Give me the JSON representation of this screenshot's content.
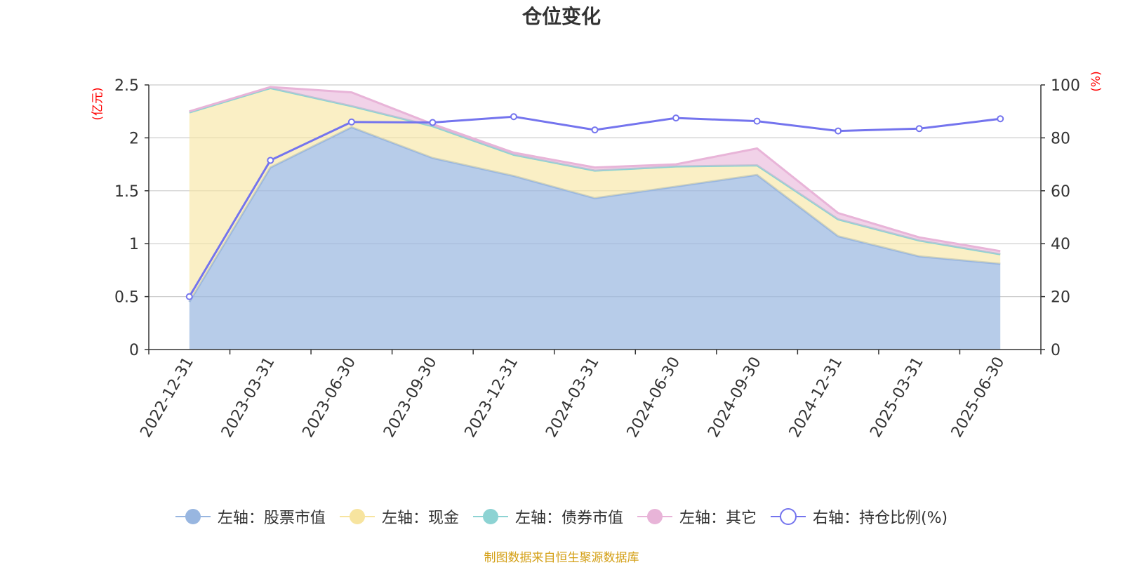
{
  "title": "仓位变化",
  "source": "制图数据来自恒生聚源数据库",
  "chart_data": {
    "type": "area",
    "title": "仓位变化",
    "x": [
      "2022-12-31",
      "2023-03-31",
      "2023-06-30",
      "2023-09-30",
      "2023-12-31",
      "2024-03-31",
      "2024-06-30",
      "2024-09-30",
      "2024-12-31",
      "2025-03-31",
      "2025-06-30"
    ],
    "y_left": {
      "unit": "(亿元)",
      "range": [
        0,
        2.5
      ],
      "ticks": [
        "0",
        "0.5",
        "1",
        "1.5",
        "2",
        "2.5"
      ]
    },
    "y_right": {
      "unit": "(%)",
      "range": [
        0,
        100
      ],
      "ticks": [
        "0",
        "20",
        "40",
        "60",
        "80",
        "100"
      ]
    },
    "series": [
      {
        "name": "左轴：股票市值",
        "axis": "left",
        "stack": true,
        "color": "#98b6e0",
        "values": [
          0.45,
          1.72,
          2.1,
          1.81,
          1.64,
          1.43,
          1.54,
          1.65,
          1.07,
          0.88,
          0.81
        ]
      },
      {
        "name": "左轴：现金",
        "axis": "left",
        "stack": true,
        "color": "#f7e49f",
        "values": [
          1.79,
          0.75,
          0.2,
          0.3,
          0.2,
          0.26,
          0.19,
          0.09,
          0.16,
          0.15,
          0.09
        ]
      },
      {
        "name": "左轴：债券市值",
        "axis": "left",
        "stack": true,
        "color": "#8dd3d3",
        "values": [
          0,
          0,
          0,
          0,
          0,
          0,
          0,
          0,
          0,
          0,
          0
        ]
      },
      {
        "name": "左轴：其它",
        "axis": "left",
        "stack": true,
        "color": "#e8b4d8",
        "values": [
          0.01,
          0.01,
          0.13,
          0.02,
          0.02,
          0.03,
          0.02,
          0.16,
          0.06,
          0.03,
          0.03
        ]
      },
      {
        "name": "右轴：持仓比例(%)",
        "axis": "right",
        "type": "line",
        "color": "#7474ee",
        "values": [
          20,
          71.5,
          86,
          85.8,
          88,
          83,
          87.5,
          86.3,
          82.6,
          83.5,
          87.2
        ]
      }
    ],
    "grid": true,
    "legend_position": "bottom"
  }
}
